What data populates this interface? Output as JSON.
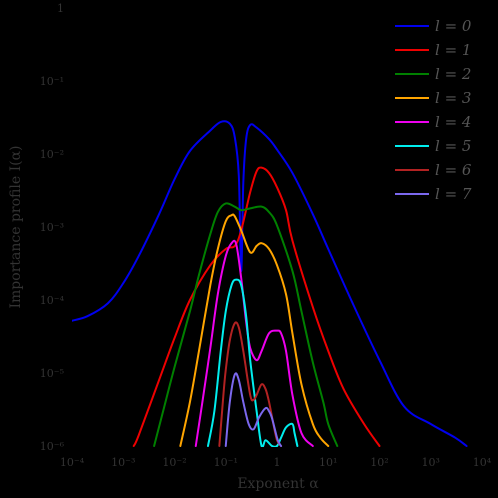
{
  "chart_data": {
    "type": "line",
    "xscale": "log",
    "yscale": "log",
    "xlim": [
      0.0001,
      10000
    ],
    "ylim": [
      1e-06,
      1
    ],
    "xlabel": "Exponent α",
    "ylabel": "Importance profile I(α)",
    "grid": false,
    "legend_position": "top-right",
    "x_ticks": [
      0.0001,
      0.001,
      0.01,
      0.1,
      1,
      10,
      100,
      1000,
      10000
    ],
    "x_tick_labels": [
      "10⁻⁴",
      "10⁻³",
      "10⁻²",
      "10⁻¹",
      "1",
      "10¹",
      "10²",
      "10³",
      "10⁴"
    ],
    "y_ticks": [
      1e-06,
      1e-05,
      0.0001,
      0.001,
      0.01,
      0.1,
      1
    ],
    "y_tick_labels": [
      "10⁻⁶",
      "10⁻⁵",
      "10⁻⁴",
      "10⁻³",
      "10⁻²",
      "10⁻¹",
      "1"
    ],
    "series": [
      {
        "name": "l = 0",
        "color": "#0000ee",
        "x": [
          0.0001,
          0.0002,
          0.0005,
          0.001,
          0.002,
          0.005,
          0.01,
          0.02,
          0.05,
          0.08,
          0.12,
          0.15,
          0.18,
          0.2,
          0.22,
          0.25,
          0.3,
          0.4,
          0.7,
          1,
          2,
          5,
          10,
          30,
          100,
          300,
          1000,
          3000,
          5000
        ],
        "y": [
          5.2e-05,
          6e-05,
          9e-05,
          0.00017,
          0.0004,
          0.0015,
          0.0045,
          0.011,
          0.021,
          0.0275,
          0.026,
          0.017,
          0.005,
          0.00025,
          0.004,
          0.016,
          0.025,
          0.023,
          0.016,
          0.0115,
          0.0055,
          0.0015,
          0.0005,
          9e-05,
          1.5e-05,
          3.5e-06,
          2e-06,
          1.3e-06,
          1e-06
        ]
      },
      {
        "name": "l = 1",
        "color": "#ee0000",
        "x": [
          0.0016,
          0.002,
          0.005,
          0.01,
          0.02,
          0.05,
          0.1,
          0.15,
          0.2,
          0.3,
          0.4,
          0.5,
          0.7,
          1,
          1.5,
          2,
          5,
          10,
          20,
          50,
          100
        ],
        "y": [
          1e-06,
          1.4e-06,
          8e-06,
          3e-05,
          0.0001,
          0.0003,
          0.0005,
          0.00055,
          0.0009,
          0.003,
          0.0058,
          0.0065,
          0.0055,
          0.0035,
          0.0017,
          0.00065,
          8e-05,
          2e-05,
          6e-06,
          2e-06,
          1e-06
        ]
      },
      {
        "name": "l = 2",
        "color": "#008000",
        "x": [
          0.004,
          0.006,
          0.01,
          0.02,
          0.03,
          0.05,
          0.07,
          0.1,
          0.15,
          0.2,
          0.3,
          0.5,
          0.7,
          1,
          2,
          3,
          5,
          8,
          10,
          15
        ],
        "y": [
          1e-06,
          3e-06,
          1.2e-05,
          7e-05,
          0.00022,
          0.0008,
          0.0016,
          0.0021,
          0.0019,
          0.0017,
          0.0018,
          0.0019,
          0.0016,
          0.00105,
          0.00025,
          7e-05,
          1.4e-05,
          4e-06,
          2e-06,
          1e-06
        ]
      },
      {
        "name": "l = 3",
        "color": "#ffa500",
        "x": [
          0.013,
          0.02,
          0.03,
          0.05,
          0.07,
          0.1,
          0.13,
          0.15,
          0.2,
          0.3,
          0.4,
          0.5,
          0.7,
          1,
          1.5,
          2,
          3,
          5,
          7,
          10
        ],
        "y": [
          1e-06,
          4e-06,
          2e-05,
          0.00016,
          0.0005,
          0.0012,
          0.00145,
          0.0014,
          0.0009,
          0.00045,
          0.00055,
          0.0006,
          0.0005,
          0.0003,
          0.00012,
          3.5e-05,
          7e-06,
          2e-06,
          1.3e-06,
          1e-06
        ]
      },
      {
        "name": "l = 4",
        "color": "#ee00ee",
        "x": [
          0.026,
          0.035,
          0.05,
          0.07,
          0.1,
          0.13,
          0.16,
          0.2,
          0.25,
          0.3,
          0.4,
          0.5,
          0.7,
          1,
          1.2,
          1.5,
          2,
          3,
          5
        ],
        "y": [
          1e-06,
          4e-06,
          2.2e-05,
          0.00012,
          0.0004,
          0.0006,
          0.00058,
          0.0002,
          5e-05,
          2.2e-05,
          1.5e-05,
          2e-05,
          3.5e-05,
          3.8e-05,
          3.5e-05,
          2e-05,
          5e-06,
          1.5e-06,
          1e-06
        ]
      },
      {
        "name": "l = 5",
        "color": "#00eeee",
        "x": [
          0.045,
          0.06,
          0.08,
          0.1,
          0.13,
          0.16,
          0.2,
          0.25,
          0.3,
          0.4,
          0.5,
          0.6,
          0.8,
          1,
          1.2,
          1.5,
          2,
          2.2,
          2.5
        ],
        "y": [
          1e-06,
          3e-06,
          2e-05,
          7e-05,
          0.00016,
          0.00019,
          0.00016,
          6e-05,
          1.5e-05,
          3e-06,
          1e-06,
          1.2e-06,
          1e-06,
          1e-06,
          1.3e-06,
          1.8e-06,
          2e-06,
          1.5e-06,
          1e-06
        ]
      },
      {
        "name": "l = 6",
        "color": "#b22222",
        "x": [
          0.075,
          0.09,
          0.1,
          0.12,
          0.15,
          0.18,
          0.22,
          0.3,
          0.35,
          0.4,
          0.5,
          0.6,
          0.7,
          0.85,
          1,
          1.2
        ],
        "y": [
          1e-06,
          5e-06,
          1.1e-05,
          2.8e-05,
          4.8e-05,
          4.2e-05,
          2e-05,
          5e-06,
          4.3e-06,
          5e-06,
          7e-06,
          6e-06,
          4e-06,
          2e-06,
          1.2e-06,
          1e-06
        ]
      },
      {
        "name": "l = 7",
        "color": "#7b68ee",
        "x": [
          0.1,
          0.12,
          0.15,
          0.18,
          0.22,
          0.28,
          0.35,
          0.45,
          0.6,
          0.7,
          0.8,
          1,
          1.1,
          1.2
        ],
        "y": [
          1e-06,
          4e-06,
          9.5e-06,
          8e-06,
          4e-06,
          2e-06,
          1.7e-06,
          2.5e-06,
          3.3e-06,
          3e-06,
          2.4e-06,
          1.3e-06,
          1.1e-06,
          1e-06
        ]
      }
    ]
  }
}
